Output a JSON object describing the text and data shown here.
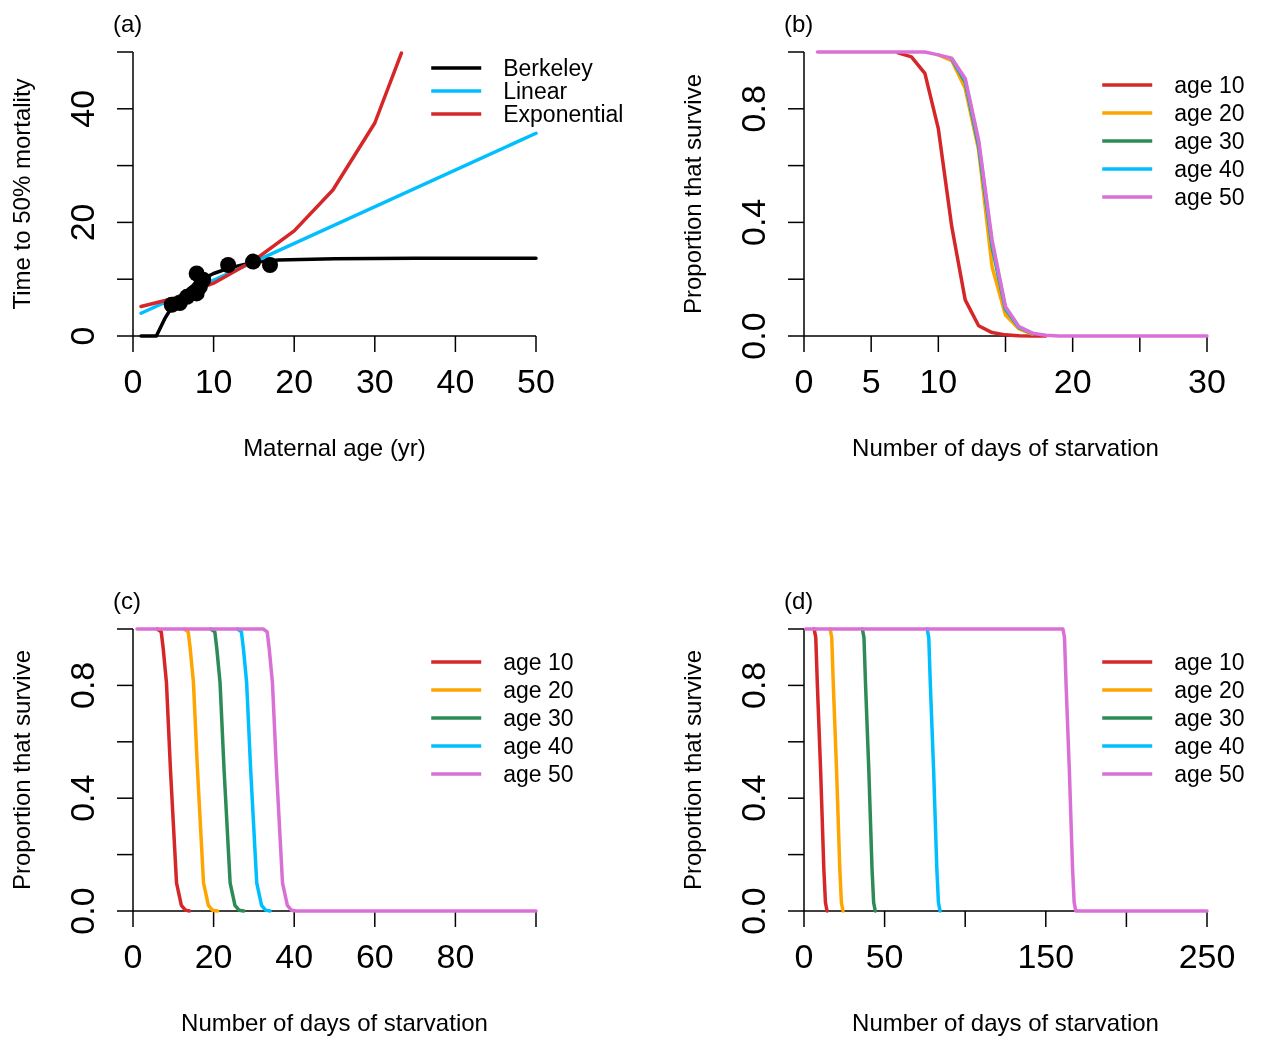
{
  "chart_data": [
    {
      "type": "line",
      "title": "(a)",
      "xlabel": "Maternal age (yr)",
      "ylabel": "Time to 50% mortality",
      "xlim": [
        0,
        50
      ],
      "xticks": [
        0,
        10,
        20,
        30,
        40,
        50
      ],
      "ylim": [
        0,
        50
      ],
      "yticks": [
        0,
        {
          "value": 10,
          "label": null
        },
        20,
        {
          "value": 30,
          "label": null
        },
        40,
        {
          "value": 50,
          "label": null
        }
      ],
      "legend": "top right",
      "series": [
        {
          "name": "Berkeley",
          "color": "#000000",
          "x": [
            1,
            2.9,
            4,
            5,
            6,
            7,
            8,
            9,
            10,
            12,
            15,
            18,
            25,
            35,
            50
          ],
          "values": [
            0,
            0,
            3.2,
            5.5,
            7,
            8.4,
            9.5,
            10.3,
            11,
            12,
            13,
            13.4,
            13.6,
            13.7,
            13.7
          ]
        },
        {
          "name": "Linear",
          "color": "#00bfff",
          "x": [
            1,
            50
          ],
          "values": [
            4,
            35.7
          ]
        },
        {
          "name": "Exponential",
          "color": "#d62728",
          "x": [
            1,
            5,
            10,
            15,
            20,
            24.8,
            30,
            33.3
          ],
          "values": [
            5.2,
            6.6,
            9.3,
            13.3,
            18.5,
            25.7,
            37.5,
            49.8
          ]
        },
        {
          "type": "scatter",
          "marker": "circle",
          "color": "#000000",
          "x": [
            4.8,
            5.8,
            6.7,
            7.9,
            7.9,
            8.3,
            8.7,
            11.8,
            14.9,
            17
          ],
          "values": [
            5.5,
            5.8,
            6.9,
            11,
            7.5,
            8.7,
            9.9,
            12.5,
            13.1,
            12.5
          ]
        }
      ]
    },
    {
      "type": "line",
      "title": "(b)",
      "xlabel": "Number of days of starvation",
      "ylabel": "Proportion that survive",
      "xlim": [
        0,
        30
      ],
      "xticks": [
        0,
        5,
        10,
        {
          "value": 15,
          "label": null
        },
        20,
        {
          "value": 25,
          "label": null
        },
        30
      ],
      "ylim": [
        0,
        1
      ],
      "yticks": [
        {
          "value": 0,
          "label": "0.0"
        },
        {
          "value": 0.2,
          "label": null
        },
        {
          "value": 0.4,
          "label": "0.4"
        },
        {
          "value": 0.6,
          "label": null
        },
        {
          "value": 0.8,
          "label": "0.8"
        },
        {
          "value": 1,
          "label": null
        }
      ],
      "legend": "top right",
      "x": [
        1,
        2,
        3,
        4,
        5,
        6,
        7,
        8,
        9,
        10,
        11,
        12,
        13,
        14,
        15,
        16,
        17,
        18,
        19,
        20,
        21,
        22,
        23,
        24,
        25,
        26,
        27,
        28,
        29,
        30
      ],
      "series": [
        {
          "name": "age 10",
          "color": "#d62728",
          "values": [
            null,
            null,
            null,
            null,
            null,
            null,
            0.997,
            0.983,
            0.925,
            0.73,
            0.385,
            0.127,
            0.036,
            0.012,
            0.004,
            0.001,
            0,
            0,
            null,
            null,
            null,
            null,
            null,
            null,
            null,
            null,
            null,
            null,
            null,
            null
          ]
        },
        {
          "name": "age 20",
          "color": "#ffa500",
          "values": [
            null,
            null,
            null,
            null,
            null,
            null,
            null,
            null,
            null,
            0.99,
            0.97,
            0.872,
            0.655,
            0.244,
            0.074,
            0.025,
            0.007,
            null,
            null,
            null,
            null,
            null,
            null,
            null,
            null,
            null,
            null,
            null,
            null,
            null
          ]
        },
        {
          "name": "age 30",
          "color": "#2e8b57",
          "values": [
            null,
            null,
            null,
            null,
            null,
            null,
            null,
            null,
            null,
            null,
            0.975,
            0.895,
            0.67,
            0.315,
            0.094,
            0.03,
            0.009,
            null,
            null,
            null,
            null,
            null,
            null,
            null,
            null,
            null,
            null,
            null,
            null,
            null
          ]
        },
        {
          "name": "age 40",
          "color": "#00bfff",
          "values": [
            null,
            null,
            null,
            null,
            null,
            null,
            null,
            null,
            null,
            null,
            0.976,
            0.9,
            0.68,
            0.326,
            0.098,
            0.031,
            0.009,
            null,
            null,
            null,
            null,
            null,
            null,
            null,
            null,
            null,
            null,
            null,
            null,
            null
          ]
        },
        {
          "name": "age 50",
          "color": "#da70d6",
          "values": [
            1,
            1,
            1,
            1,
            1,
            1,
            1,
            1,
            1,
            0.99,
            0.978,
            0.907,
            0.69,
            0.338,
            0.103,
            0.033,
            0.01,
            0.003,
            0,
            0,
            0,
            0,
            0,
            0,
            0,
            0,
            0,
            0,
            0,
            0
          ]
        }
      ]
    },
    {
      "type": "line",
      "title": "(c)",
      "xlabel": "Number of days of starvation",
      "ylabel": "Proportion that survive",
      "xlim": [
        0,
        100
      ],
      "xticks": [
        0,
        20,
        40,
        60,
        80,
        {
          "value": 100,
          "label": null
        }
      ],
      "ylim": [
        0,
        1
      ],
      "yticks": [
        {
          "value": 0,
          "label": "0.0"
        },
        {
          "value": 0.2,
          "label": null
        },
        {
          "value": 0.4,
          "label": "0.4"
        },
        {
          "value": 0.6,
          "label": null
        },
        {
          "value": 0.8,
          "label": "0.8"
        },
        {
          "value": 1,
          "label": null
        }
      ],
      "legend": "top right",
      "series": [
        {
          "name": "age 10",
          "color": "#d62728",
          "x": [
            6,
            7,
            7.5,
            8.3,
            9.3,
            10.8,
            12,
            13,
            14
          ],
          "values": [
            1,
            0.99,
            0.93,
            0.81,
            0.5,
            0.1,
            0.02,
            0.003,
            0
          ]
        },
        {
          "name": "age 20",
          "color": "#ffa500",
          "x": [
            12.7,
            13.7,
            14.2,
            15,
            16,
            17.5,
            18.7,
            19.7,
            21
          ],
          "values": [
            1,
            0.99,
            0.93,
            0.81,
            0.5,
            0.1,
            0.02,
            0.003,
            0
          ]
        },
        {
          "name": "age 30",
          "color": "#2e8b57",
          "x": [
            19.3,
            20.3,
            20.8,
            21.6,
            22.6,
            24.1,
            25.3,
            26.3,
            27.5
          ],
          "values": [
            1,
            0.99,
            0.93,
            0.81,
            0.5,
            0.1,
            0.02,
            0.003,
            0
          ]
        },
        {
          "name": "age 40",
          "color": "#00bfff",
          "x": [
            25.9,
            26.9,
            27.4,
            28.2,
            29.2,
            30.7,
            31.9,
            32.9,
            34
          ],
          "values": [
            1,
            0.99,
            0.93,
            0.81,
            0.5,
            0.1,
            0.02,
            0.003,
            0
          ]
        },
        {
          "name": "age 50",
          "color": "#da70d6",
          "x": [
            1,
            32.3,
            33.3,
            33.8,
            34.6,
            35.6,
            37.1,
            38.3,
            39.3,
            40.5,
            100
          ],
          "values": [
            1,
            1,
            0.99,
            0.93,
            0.81,
            0.5,
            0.1,
            0.02,
            0.003,
            0,
            0
          ]
        }
      ]
    },
    {
      "type": "line",
      "title": "(d)",
      "xlabel": "Number of days of starvation",
      "ylabel": "Proportion that survive",
      "xlim": [
        0,
        250
      ],
      "xticks": [
        0,
        50,
        {
          "value": 100,
          "label": null
        },
        150,
        {
          "value": 200,
          "label": null
        },
        250
      ],
      "ylim": [
        0,
        1
      ],
      "yticks": [
        {
          "value": 0,
          "label": "0.0"
        },
        {
          "value": 0.2,
          "label": null
        },
        {
          "value": 0.4,
          "label": "0.4"
        },
        {
          "value": 0.6,
          "label": null
        },
        {
          "value": 0.8,
          "label": "0.8"
        },
        {
          "value": 1,
          "label": null
        }
      ],
      "legend": "top right",
      "series": [
        {
          "name": "age 10",
          "color": "#d62728",
          "x": [
            6.3,
            7.3,
            8.3,
            10.3,
            12.3,
            13.3,
            14.3
          ],
          "values": [
            1,
            0.97,
            0.8,
            0.5,
            0.15,
            0.03,
            0
          ]
        },
        {
          "name": "age 20",
          "color": "#ffa500",
          "x": [
            16.2,
            17.2,
            18.2,
            20.2,
            22.2,
            23.2,
            24.2
          ],
          "values": [
            1,
            0.97,
            0.8,
            0.5,
            0.15,
            0.03,
            0
          ]
        },
        {
          "name": "age 30",
          "color": "#2e8b57",
          "x": [
            36.2,
            37.2,
            38.2,
            40.2,
            42.2,
            43.2,
            44.2
          ],
          "values": [
            1,
            0.97,
            0.8,
            0.5,
            0.15,
            0.03,
            0
          ]
        },
        {
          "name": "age 40",
          "color": "#00bfff",
          "x": [
            76.4,
            77.4,
            78.4,
            80.4,
            82.4,
            83.4,
            84.4
          ],
          "values": [
            1,
            0.97,
            0.8,
            0.5,
            0.15,
            0.03,
            0
          ]
        },
        {
          "name": "age 50",
          "color": "#da70d6",
          "x": [
            1,
            160.6,
            161.6,
            162.6,
            164.6,
            166.6,
            167.6,
            168.6,
            250
          ],
          "values": [
            1,
            1,
            0.97,
            0.8,
            0.5,
            0.15,
            0.03,
            0,
            0
          ]
        }
      ]
    }
  ]
}
